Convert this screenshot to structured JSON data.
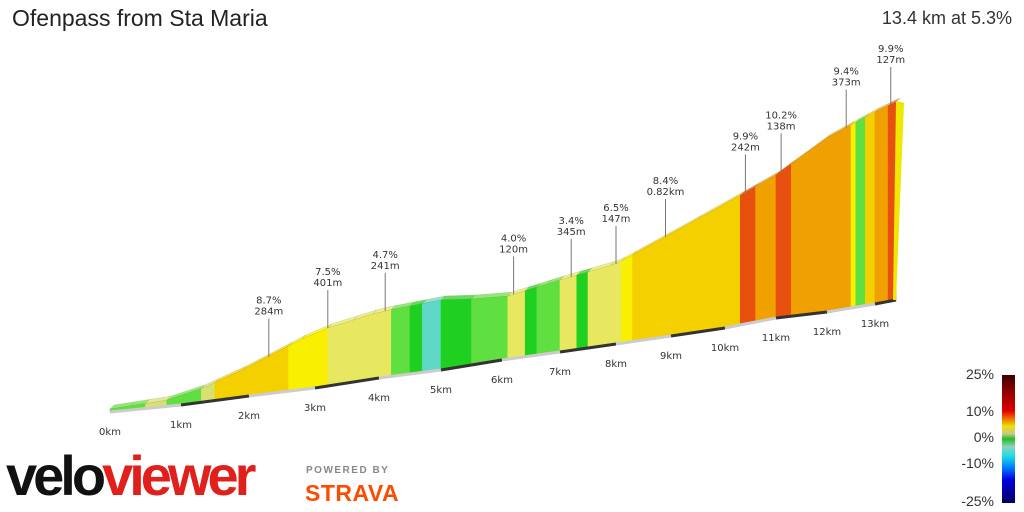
{
  "header": {
    "title": "Ofenpass from Sta Maria",
    "summary": "13.4 km at 5.3%"
  },
  "chart_data": {
    "type": "area",
    "title": "Ofenpass from Sta Maria",
    "distance_km": 13.4,
    "avg_grade_pct": 5.3,
    "x_ticks": [
      "0km",
      "1km",
      "2km",
      "3km",
      "4km",
      "5km",
      "6km",
      "7km",
      "8km",
      "9km",
      "10km",
      "11km",
      "12km",
      "13km"
    ],
    "segments_grade_pct": [
      {
        "from": 0,
        "to": 0.3,
        "grade": 2
      },
      {
        "from": 0.3,
        "to": 0.5,
        "grade": 1
      },
      {
        "from": 0.5,
        "to": 0.8,
        "grade": 2.5
      },
      {
        "from": 0.8,
        "to": 1.3,
        "grade": 0.5
      },
      {
        "from": 1.3,
        "to": 1.5,
        "grade": 3
      },
      {
        "from": 1.5,
        "to": 1.9,
        "grade": 7.5
      },
      {
        "from": 1.9,
        "to": 2.6,
        "grade": 7
      },
      {
        "from": 2.6,
        "to": 2.8,
        "grade": 6
      },
      {
        "from": 2.8,
        "to": 3.2,
        "grade": 6
      },
      {
        "from": 3.2,
        "to": 3.6,
        "grade": 5
      },
      {
        "from": 3.6,
        "to": 3.9,
        "grade": 4
      },
      {
        "from": 3.9,
        "to": 4.2,
        "grade": 4.5
      },
      {
        "from": 4.2,
        "to": 4.5,
        "grade": 1
      },
      {
        "from": 4.5,
        "to": 4.7,
        "grade": 0
      },
      {
        "from": 4.7,
        "to": 5.0,
        "grade": -3
      },
      {
        "from": 5.0,
        "to": 5.1,
        "grade": -1
      },
      {
        "from": 5.1,
        "to": 5.5,
        "grade": 0
      },
      {
        "from": 5.5,
        "to": 6.1,
        "grade": 1
      },
      {
        "from": 6.1,
        "to": 6.4,
        "grade": 4
      },
      {
        "from": 6.4,
        "to": 6.6,
        "grade": 0
      },
      {
        "from": 6.6,
        "to": 6.8,
        "grade": 1
      },
      {
        "from": 6.8,
        "to": 7.0,
        "grade": 2
      },
      {
        "from": 7.0,
        "to": 7.3,
        "grade": 4
      },
      {
        "from": 7.3,
        "to": 7.5,
        "grade": 0
      },
      {
        "from": 7.5,
        "to": 7.9,
        "grade": 4
      },
      {
        "from": 7.9,
        "to": 8.1,
        "grade": 5
      },
      {
        "from": 8.1,
        "to": 8.3,
        "grade": 6
      },
      {
        "from": 8.3,
        "to": 9.5,
        "grade": 8
      },
      {
        "from": 9.5,
        "to": 10.3,
        "grade": 8
      },
      {
        "from": 10.3,
        "to": 10.6,
        "grade": 9.9
      },
      {
        "from": 10.6,
        "to": 11.0,
        "grade": 8.5
      },
      {
        "from": 11.0,
        "to": 11.3,
        "grade": 10.2
      },
      {
        "from": 11.3,
        "to": 12.0,
        "grade": 9.5
      },
      {
        "from": 12.0,
        "to": 12.5,
        "grade": 9.4
      },
      {
        "from": 12.5,
        "to": 12.6,
        "grade": 6
      },
      {
        "from": 12.6,
        "to": 12.8,
        "grade": 1
      },
      {
        "from": 12.8,
        "to": 13.0,
        "grade": 7
      },
      {
        "from": 13.0,
        "to": 13.25,
        "grade": 9
      },
      {
        "from": 13.25,
        "to": 13.4,
        "grade": 9.9
      }
    ],
    "annotations": [
      {
        "km": 2.3,
        "grade": "8.7%",
        "length": "284m"
      },
      {
        "km": 3.2,
        "grade": "7.5%",
        "length": "401m"
      },
      {
        "km": 4.1,
        "grade": "4.7%",
        "length": "241m"
      },
      {
        "km": 6.2,
        "grade": "4.0%",
        "length": "120m"
      },
      {
        "km": 7.2,
        "grade": "3.4%",
        "length": "345m"
      },
      {
        "km": 8.0,
        "grade": "6.5%",
        "length": "147m"
      },
      {
        "km": 8.9,
        "grade": "8.4%",
        "length": "0.82km"
      },
      {
        "km": 10.4,
        "grade": "9.9%",
        "length": "242m"
      },
      {
        "km": 11.1,
        "grade": "10.2%",
        "length": "138m"
      },
      {
        "km": 12.4,
        "grade": "9.4%",
        "length": "373m"
      },
      {
        "km": 13.3,
        "grade": "9.9%",
        "length": "127m"
      }
    ],
    "legend": {
      "labels": [
        "25%",
        "10%",
        "0%",
        "-10%",
        "-25%"
      ],
      "placement": "bottom-right"
    }
  },
  "branding": {
    "logo_a": "velo",
    "logo_b": "viewer",
    "powered": "POWERED BY",
    "strava": "STRAVA"
  }
}
